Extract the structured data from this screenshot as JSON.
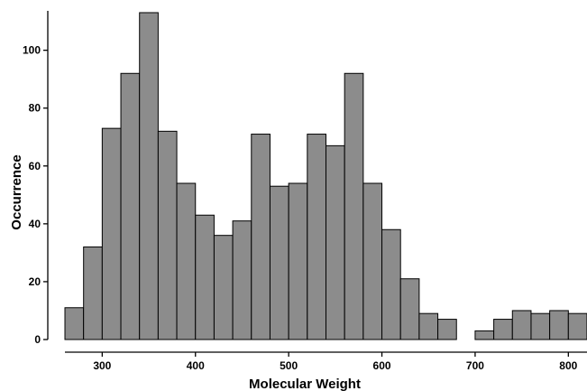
{
  "chart_data": {
    "type": "bar",
    "title": "",
    "xlabel": "Molecular Weight",
    "ylabel": "Occurrence",
    "bin_width": 20,
    "bin_starts": [
      260,
      280,
      300,
      320,
      340,
      360,
      380,
      400,
      420,
      440,
      460,
      480,
      500,
      520,
      540,
      560,
      580,
      600,
      620,
      640,
      660,
      680,
      700,
      720,
      740,
      760,
      780,
      800
    ],
    "values": [
      11,
      32,
      73,
      92,
      113,
      72,
      54,
      43,
      36,
      41,
      71,
      53,
      54,
      71,
      67,
      92,
      54,
      38,
      21,
      9,
      7,
      0,
      3,
      7,
      10,
      9,
      10,
      9
    ],
    "xlim": [
      260,
      820
    ],
    "ylim": [
      0,
      113
    ],
    "x_ticks": [
      300,
      400,
      500,
      600,
      700,
      800
    ],
    "y_ticks": [
      0,
      20,
      40,
      60,
      80,
      100
    ],
    "x_tick_labels": [
      "300",
      "400",
      "500",
      "600",
      "700",
      "800"
    ],
    "y_tick_labels": [
      "0",
      "20",
      "40",
      "60",
      "80",
      "100"
    ],
    "bar_color": "#8c8c8c",
    "grid": false,
    "legend": "none"
  }
}
